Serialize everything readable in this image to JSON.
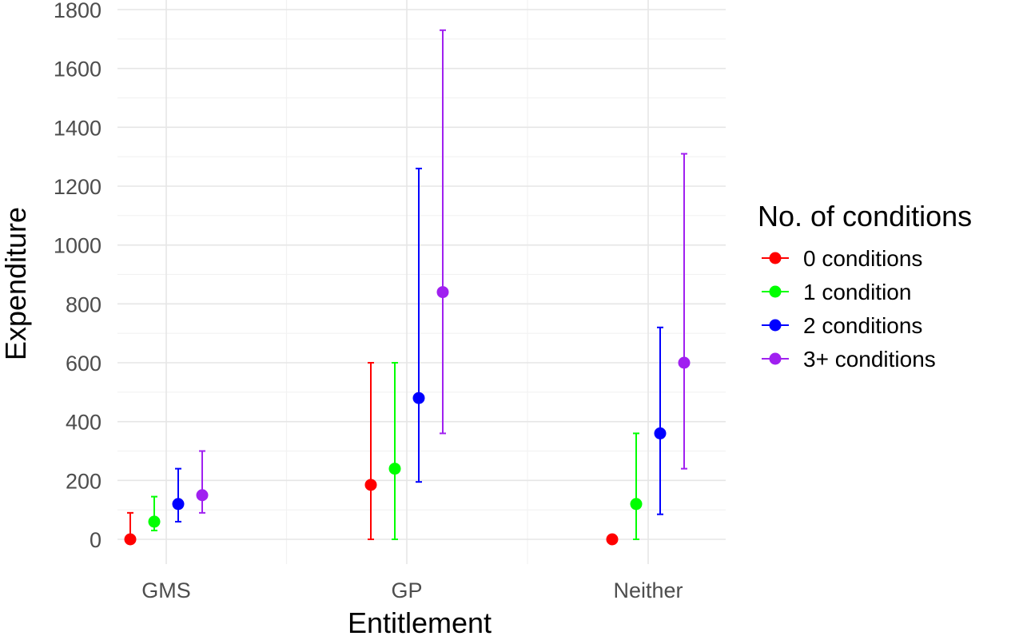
{
  "chart_data": {
    "type": "scatter",
    "xlabel": "Entitlement",
    "ylabel": "Expenditure",
    "categories": [
      "GMS",
      "GP",
      "Neither"
    ],
    "ylim": [
      -80,
      1800
    ],
    "yticks": [
      0,
      200,
      400,
      600,
      800,
      1000,
      1200,
      1400,
      1600,
      1800
    ],
    "ytick_labels": [
      "0",
      "200",
      "400",
      "600",
      "800",
      "1000",
      "1200",
      "1400",
      "1600",
      "1800"
    ],
    "grid": true,
    "legend": {
      "title": "No. of conditions",
      "placement": "right"
    },
    "series": [
      {
        "name": "0 conditions",
        "color": "#ff0000",
        "values": [
          0,
          185,
          0
        ],
        "lower": [
          0,
          0,
          0
        ],
        "upper": [
          90,
          600,
          0
        ]
      },
      {
        "name": "1 condition",
        "color": "#00ff00",
        "values": [
          60,
          240,
          120
        ],
        "lower": [
          30,
          0,
          0
        ],
        "upper": [
          145,
          600,
          360
        ]
      },
      {
        "name": "2 conditions",
        "color": "#0000ff",
        "values": [
          120,
          480,
          360
        ],
        "lower": [
          60,
          195,
          85
        ],
        "upper": [
          240,
          1260,
          720
        ]
      },
      {
        "name": "3+ conditions",
        "color": "#a020f0",
        "values": [
          150,
          840,
          600
        ],
        "lower": [
          90,
          360,
          240
        ],
        "upper": [
          300,
          1730,
          1310
        ]
      }
    ]
  }
}
